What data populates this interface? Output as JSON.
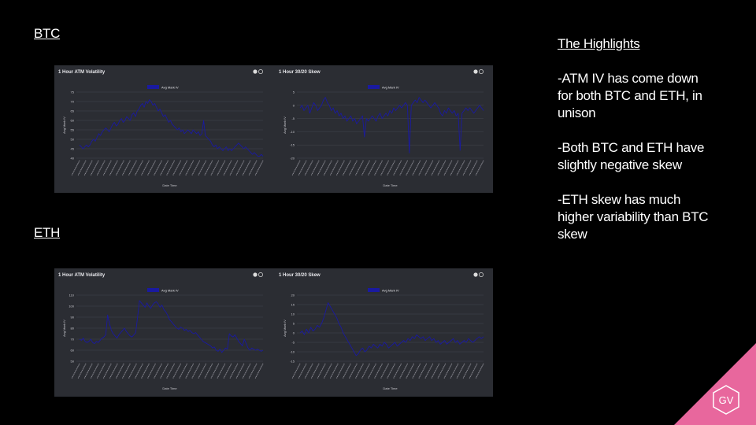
{
  "labels": {
    "btc": "BTC",
    "eth": "ETH"
  },
  "highlights": {
    "title": "The Highlights",
    "bullets": [
      "-ATM IV has come down for both BTC and ETH, in unison",
      "-Both BTC and ETH have slightly negative skew",
      "-ETH skew has much higher variability than BTC skew"
    ]
  },
  "logo": {
    "text": "GV",
    "color": "#e8679d"
  },
  "colors": {
    "line": "#1a1aa0",
    "panel_bg": "#2b2d33",
    "grid": "#4a4c55",
    "axis_text": "#c9c9cf"
  },
  "chart_data": [
    {
      "id": "btc-vol",
      "type": "line",
      "title": "1 Hour ATM Volatility",
      "legend": "Avg Mark IV",
      "xlabel": "Date Time",
      "ylabel": "Avg Mark IV",
      "yticks": [
        40,
        45,
        50,
        55,
        60,
        65,
        70,
        75
      ],
      "ylim": [
        40,
        75
      ],
      "x_tick_count": 30,
      "values": [
        47,
        46,
        45,
        46,
        47,
        46,
        47,
        49,
        50,
        49,
        51,
        53,
        52,
        54,
        55,
        56,
        55,
        54,
        56,
        58,
        59,
        57,
        58,
        60,
        61,
        59,
        60,
        62,
        61,
        60,
        63,
        64,
        62,
        65,
        66,
        68,
        69,
        67,
        70,
        69,
        71,
        70,
        68,
        69,
        67,
        65,
        66,
        64,
        62,
        63,
        61,
        59,
        60,
        58,
        57,
        56,
        55,
        56,
        54,
        55,
        53,
        54,
        55,
        54,
        53,
        55,
        54,
        53,
        54,
        52,
        53,
        60,
        52,
        51,
        50,
        49,
        47,
        46,
        47,
        45,
        46,
        45,
        44,
        45,
        46,
        44,
        45,
        44,
        45,
        46,
        47,
        48,
        47,
        46,
        45,
        46,
        45,
        44,
        43,
        42,
        43,
        42,
        41,
        41,
        42,
        41
      ]
    },
    {
      "id": "btc-skew",
      "type": "line",
      "title": "1 Hour 30/20 Skew",
      "legend": "Avg Mark IV",
      "xlabel": "Date Time",
      "ylabel": "Avg Mark IV",
      "yticks": [
        -20,
        -15,
        -10,
        -5,
        0,
        5
      ],
      "ylim": [
        -20,
        5
      ],
      "x_tick_count": 30,
      "values": [
        -1,
        0,
        -2,
        -1,
        0,
        -3,
        -1,
        1,
        0,
        -2,
        -1,
        0,
        2,
        3,
        1,
        0,
        -2,
        -1,
        -3,
        -2,
        -4,
        -3,
        -5,
        -4,
        -6,
        -5,
        -4,
        -6,
        -5,
        -7,
        -6,
        -5,
        -4,
        -12,
        -5,
        -6,
        -5,
        -4,
        -5,
        -6,
        -4,
        -3,
        -5,
        -4,
        -3,
        -4,
        -2,
        -3,
        -1,
        -2,
        -1,
        0,
        -1,
        0,
        1,
        0,
        -18,
        0,
        1,
        2,
        1,
        3,
        2,
        1,
        2,
        1,
        0,
        -1,
        0,
        1,
        0,
        -1,
        -3,
        -4,
        -2,
        -3,
        -1,
        -2,
        -3,
        -2,
        -4,
        -3,
        -17,
        -3,
        -2,
        -1,
        -2,
        -1,
        -2,
        -3,
        -2,
        -1,
        0,
        -1,
        -2
      ]
    },
    {
      "id": "eth-vol",
      "type": "line",
      "title": "1 Hour ATM Volatility",
      "legend": "Avg Mark IV",
      "xlabel": "Date Time",
      "ylabel": "Avg Mark IV",
      "yticks": [
        50,
        60,
        70,
        80,
        90,
        100,
        110
      ],
      "ylim": [
        50,
        110
      ],
      "x_tick_count": 30,
      "values": [
        70,
        69,
        71,
        68,
        67,
        68,
        70,
        67,
        66,
        68,
        67,
        69,
        71,
        72,
        74,
        92,
        84,
        78,
        75,
        73,
        71,
        74,
        76,
        78,
        80,
        77,
        75,
        73,
        72,
        74,
        76,
        90,
        105,
        103,
        101,
        99,
        103,
        100,
        98,
        101,
        103,
        104,
        102,
        99,
        101,
        97,
        95,
        92,
        88,
        86,
        84,
        82,
        80,
        79,
        81,
        80,
        78,
        79,
        77,
        78,
        76,
        75,
        76,
        74,
        72,
        70,
        68,
        67,
        66,
        65,
        64,
        62,
        63,
        60,
        59,
        61,
        58,
        60,
        62,
        61,
        75,
        73,
        72,
        74,
        71,
        68,
        66,
        64,
        70,
        66,
        62,
        60,
        62,
        61,
        60,
        61,
        60,
        59,
        60
      ]
    },
    {
      "id": "eth-skew",
      "type": "line",
      "title": "1 Hour 30/20 Skew",
      "legend": "Avg Mark IV",
      "xlabel": "Date Time",
      "ylabel": "Avg Mark IV",
      "yticks": [
        -15,
        -10,
        -5,
        0,
        5,
        10,
        15,
        20
      ],
      "ylim": [
        -15,
        20
      ],
      "x_tick_count": 30,
      "values": [
        0,
        1,
        -1,
        2,
        0,
        3,
        1,
        2,
        4,
        3,
        5,
        8,
        12,
        16,
        14,
        12,
        10,
        8,
        5,
        3,
        0,
        -2,
        -4,
        -6,
        -8,
        -10,
        -12,
        -11,
        -9,
        -8,
        -10,
        -9,
        -7,
        -8,
        -6,
        -7,
        -8,
        -6,
        -7,
        -5,
        -6,
        -8,
        -7,
        -6,
        -5,
        -7,
        -6,
        -5,
        -4,
        -5,
        -3,
        -4,
        -2,
        -3,
        -1,
        -2,
        -3,
        -2,
        -4,
        -3,
        -2,
        -4,
        -3,
        -5,
        -4,
        -6,
        -5,
        -4,
        -6,
        -5,
        -4,
        -3,
        -5,
        -4,
        -6,
        -5,
        -4,
        -5,
        -3,
        -4,
        -5,
        -4,
        -3,
        -2,
        -3,
        -2
      ]
    }
  ]
}
